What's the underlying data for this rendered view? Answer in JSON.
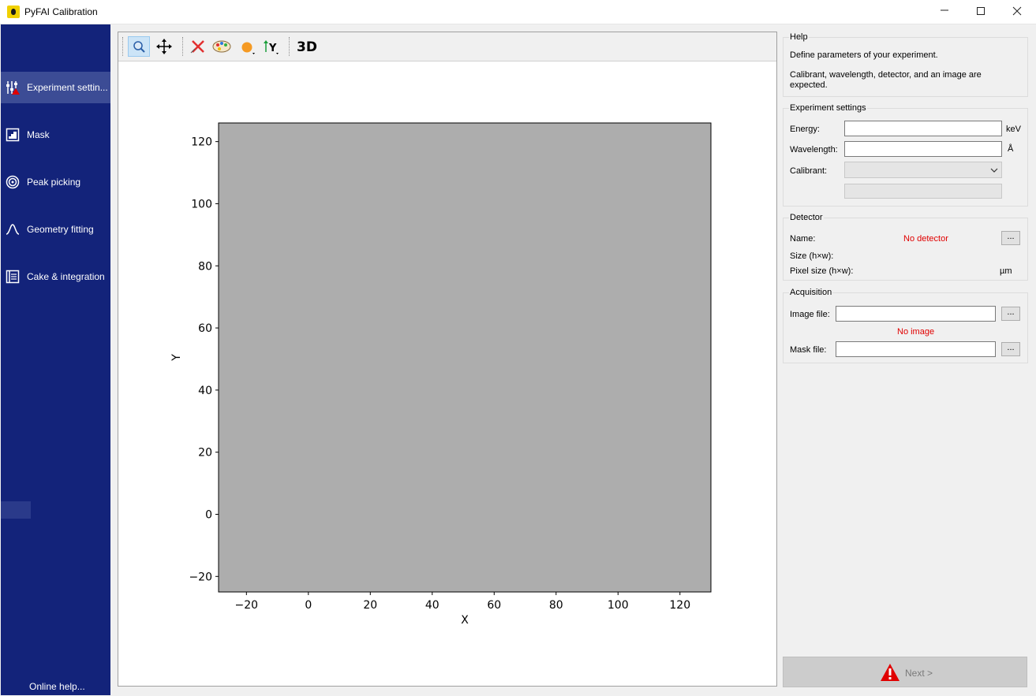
{
  "window": {
    "title": "PyFAI Calibration",
    "minimize_glyph": "—",
    "maximize_glyph": "☐",
    "close_glyph": "✕"
  },
  "sidebar": {
    "items": [
      {
        "label": "Experiment settin...",
        "icon": "sliders-warning-icon",
        "active": true
      },
      {
        "label": "Mask",
        "icon": "mask-icon",
        "active": false
      },
      {
        "label": "Peak picking",
        "icon": "rings-icon",
        "active": false
      },
      {
        "label": "Geometry fitting",
        "icon": "peak-curve-icon",
        "active": false
      },
      {
        "label": "Cake & integration",
        "icon": "integration-icon",
        "active": false
      }
    ],
    "online_help": "Online help..."
  },
  "toolbar": {
    "tools": [
      "zoom-icon",
      "pan-icon",
      "reset-zoom-icon",
      "colormap-icon",
      "marker-color-icon",
      "y-axis-direction-icon"
    ],
    "zoom_active": true,
    "three_d_label": "3D"
  },
  "plot": {
    "xlabel": "X",
    "ylabel": "Y",
    "xlim": [
      -29,
      130
    ],
    "ylim": [
      -25,
      126
    ],
    "xticks": [
      -20,
      0,
      20,
      40,
      60,
      80,
      100,
      120
    ],
    "yticks": [
      -20,
      0,
      20,
      40,
      60,
      80,
      100,
      120
    ],
    "image_color": "#adadad"
  },
  "help": {
    "title": "Help",
    "line1": "Define parameters of your experiment.",
    "line2": "Calibrant, wavelength, detector, and an image are",
    "line3": "expected."
  },
  "experiment": {
    "title": "Experiment settings",
    "energy_label": "Energy:",
    "energy_value": "",
    "energy_unit": "keV",
    "wavelength_label": "Wavelength:",
    "wavelength_value": "",
    "wavelength_unit": "Å",
    "calibrant_label": "Calibrant:",
    "calibrant_value": ""
  },
  "detector": {
    "title": "Detector",
    "name_label": "Name:",
    "name_value": "No detector",
    "size_label": "Size (h×w):",
    "pixel_label": "Pixel size (h×w):",
    "pixel_unit": "µm",
    "browse": "..."
  },
  "acquisition": {
    "title": "Acquisition",
    "image_label": "Image file:",
    "image_value": "",
    "image_status": "No image",
    "mask_label": "Mask file:",
    "mask_value": "",
    "browse": "..."
  },
  "next": {
    "label": "Next >"
  },
  "colors": {
    "sidebar_bg": "#13237a",
    "sidebar_active": "#3c4c95",
    "error_red": "#e00000"
  }
}
